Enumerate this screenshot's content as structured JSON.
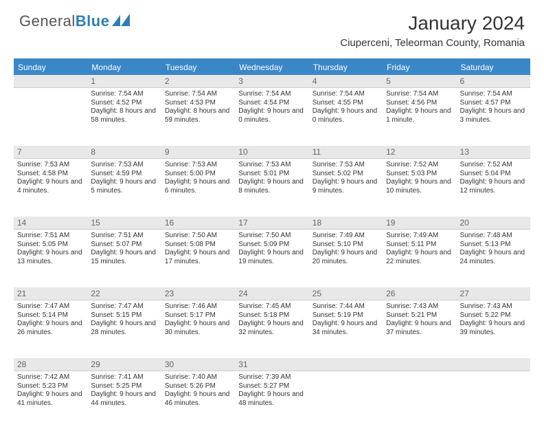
{
  "brand": {
    "part1": "General",
    "part2": "Blue"
  },
  "title": "January 2024",
  "location": "Ciuperceni, Teleorman County, Romania",
  "colors": {
    "header_bar": "#3a87c8",
    "daynum_bg": "#e8e8e8",
    "border": "#cccccc",
    "text": "#333333",
    "brand_blue": "#2c7fb8",
    "background": "#ffffff"
  },
  "layout": {
    "columns": 7,
    "first_day_offset": 1,
    "days_in_month": 31,
    "weeks": 5
  },
  "dow": [
    "Sunday",
    "Monday",
    "Tuesday",
    "Wednesday",
    "Thursday",
    "Friday",
    "Saturday"
  ],
  "days": {
    "1": {
      "sunrise": "7:54 AM",
      "sunset": "4:52 PM",
      "daylight": "8 hours and 58 minutes."
    },
    "2": {
      "sunrise": "7:54 AM",
      "sunset": "4:53 PM",
      "daylight": "8 hours and 59 minutes."
    },
    "3": {
      "sunrise": "7:54 AM",
      "sunset": "4:54 PM",
      "daylight": "9 hours and 0 minutes."
    },
    "4": {
      "sunrise": "7:54 AM",
      "sunset": "4:55 PM",
      "daylight": "9 hours and 0 minutes."
    },
    "5": {
      "sunrise": "7:54 AM",
      "sunset": "4:56 PM",
      "daylight": "9 hours and 1 minute."
    },
    "6": {
      "sunrise": "7:54 AM",
      "sunset": "4:57 PM",
      "daylight": "9 hours and 3 minutes."
    },
    "7": {
      "sunrise": "7:53 AM",
      "sunset": "4:58 PM",
      "daylight": "9 hours and 4 minutes."
    },
    "8": {
      "sunrise": "7:53 AM",
      "sunset": "4:59 PM",
      "daylight": "9 hours and 5 minutes."
    },
    "9": {
      "sunrise": "7:53 AM",
      "sunset": "5:00 PM",
      "daylight": "9 hours and 6 minutes."
    },
    "10": {
      "sunrise": "7:53 AM",
      "sunset": "5:01 PM",
      "daylight": "9 hours and 8 minutes."
    },
    "11": {
      "sunrise": "7:53 AM",
      "sunset": "5:02 PM",
      "daylight": "9 hours and 9 minutes."
    },
    "12": {
      "sunrise": "7:52 AM",
      "sunset": "5:03 PM",
      "daylight": "9 hours and 10 minutes."
    },
    "13": {
      "sunrise": "7:52 AM",
      "sunset": "5:04 PM",
      "daylight": "9 hours and 12 minutes."
    },
    "14": {
      "sunrise": "7:51 AM",
      "sunset": "5:05 PM",
      "daylight": "9 hours and 13 minutes."
    },
    "15": {
      "sunrise": "7:51 AM",
      "sunset": "5:07 PM",
      "daylight": "9 hours and 15 minutes."
    },
    "16": {
      "sunrise": "7:50 AM",
      "sunset": "5:08 PM",
      "daylight": "9 hours and 17 minutes."
    },
    "17": {
      "sunrise": "7:50 AM",
      "sunset": "5:09 PM",
      "daylight": "9 hours and 19 minutes."
    },
    "18": {
      "sunrise": "7:49 AM",
      "sunset": "5:10 PM",
      "daylight": "9 hours and 20 minutes."
    },
    "19": {
      "sunrise": "7:49 AM",
      "sunset": "5:11 PM",
      "daylight": "9 hours and 22 minutes."
    },
    "20": {
      "sunrise": "7:48 AM",
      "sunset": "5:13 PM",
      "daylight": "9 hours and 24 minutes."
    },
    "21": {
      "sunrise": "7:47 AM",
      "sunset": "5:14 PM",
      "daylight": "9 hours and 26 minutes."
    },
    "22": {
      "sunrise": "7:47 AM",
      "sunset": "5:15 PM",
      "daylight": "9 hours and 28 minutes."
    },
    "23": {
      "sunrise": "7:46 AM",
      "sunset": "5:17 PM",
      "daylight": "9 hours and 30 minutes."
    },
    "24": {
      "sunrise": "7:45 AM",
      "sunset": "5:18 PM",
      "daylight": "9 hours and 32 minutes."
    },
    "25": {
      "sunrise": "7:44 AM",
      "sunset": "5:19 PM",
      "daylight": "9 hours and 34 minutes."
    },
    "26": {
      "sunrise": "7:43 AM",
      "sunset": "5:21 PM",
      "daylight": "9 hours and 37 minutes."
    },
    "27": {
      "sunrise": "7:43 AM",
      "sunset": "5:22 PM",
      "daylight": "9 hours and 39 minutes."
    },
    "28": {
      "sunrise": "7:42 AM",
      "sunset": "5:23 PM",
      "daylight": "9 hours and 41 minutes."
    },
    "29": {
      "sunrise": "7:41 AM",
      "sunset": "5:25 PM",
      "daylight": "9 hours and 44 minutes."
    },
    "30": {
      "sunrise": "7:40 AM",
      "sunset": "5:26 PM",
      "daylight": "9 hours and 46 minutes."
    },
    "31": {
      "sunrise": "7:39 AM",
      "sunset": "5:27 PM",
      "daylight": "9 hours and 48 minutes."
    }
  },
  "labels": {
    "sunrise": "Sunrise:",
    "sunset": "Sunset:",
    "daylight": "Daylight:"
  },
  "typography": {
    "title_fontsize": 28,
    "location_fontsize": 15,
    "dow_fontsize": 12,
    "daynum_fontsize": 12,
    "detail_fontsize": 10
  }
}
